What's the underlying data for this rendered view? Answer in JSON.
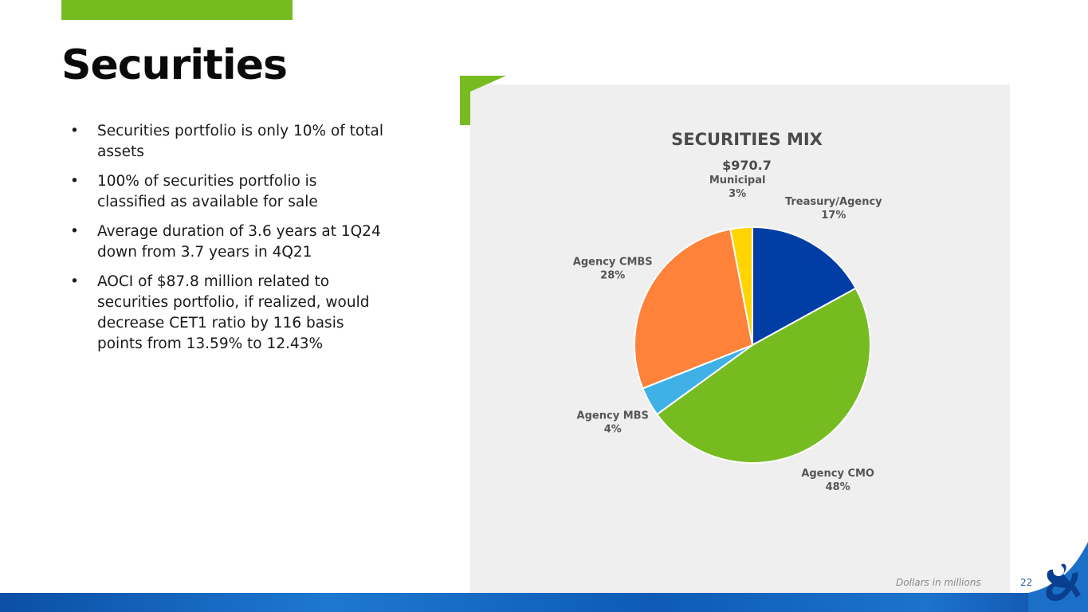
{
  "slide": {
    "title": "Securities",
    "bullets": [
      "Securities portfolio is only 10% of total assets",
      "100% of securities portfolio is classified as available for sale",
      "Average duration of 3.6 years at 1Q24 down from 3.7 years in 4Q21",
      "AOCI of $87.8 million related to securities portfolio, if realized, would decrease CET1 ratio by 116 basis points from 13.59% to 12.43%"
    ],
    "footnote": "Dollars in millions",
    "page_number": "22"
  },
  "chart_data": {
    "type": "pie",
    "title": "SECURITIES MIX",
    "subtitle": "$970.7",
    "categories": [
      "Treasury/Agency",
      "Agency CMO",
      "Agency MBS",
      "Agency CMBS",
      "Municipal"
    ],
    "values": [
      17,
      48,
      4,
      28,
      3
    ],
    "value_labels": [
      "17%",
      "48%",
      "4%",
      "28%",
      "3%"
    ],
    "colors": [
      "#003da5",
      "#76bc21",
      "#3fb1e5",
      "#ff823b",
      "#ffd400"
    ],
    "start_angle_deg": 0,
    "direction": "clockwise",
    "legend": "none"
  },
  "theme": {
    "accent_green": "#76bc21",
    "brand_blue": "#0b4fa6"
  }
}
